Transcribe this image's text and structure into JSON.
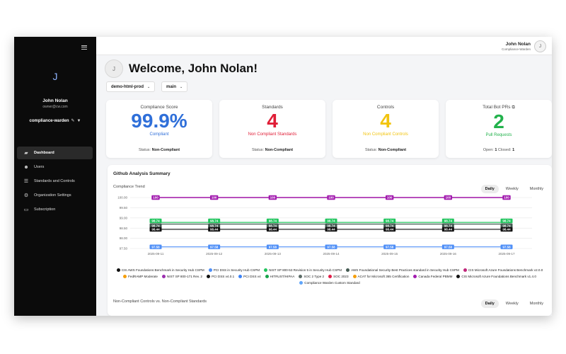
{
  "sidebar": {
    "avatar_initial": "J",
    "user_name": "John Nolan",
    "user_email": "owner@cw.com",
    "org_name": "compliance-warden",
    "nav": [
      {
        "label": "Dashboard",
        "icon": "dashboard-icon",
        "active": true
      },
      {
        "label": "Users",
        "icon": "users-icon",
        "active": false
      },
      {
        "label": "Standards and Controls",
        "icon": "list-icon",
        "active": false
      },
      {
        "label": "Organization Settings",
        "icon": "gear-icon",
        "active": false
      },
      {
        "label": "Subscription",
        "icon": "card-icon",
        "active": false
      }
    ]
  },
  "header": {
    "user_name": "John Nolan",
    "user_role": "Compliance-Warden",
    "avatar_initial": "J"
  },
  "welcome": {
    "avatar_initial": "J",
    "title": "Welcome, John Nolan!"
  },
  "selectors": {
    "repo": "demo-html-prod",
    "branch": "main"
  },
  "cards": [
    {
      "title": "Compliance Score",
      "value": "99.9%",
      "sub": "Compliant",
      "status_label": "Status:",
      "status_value": "Non-Compliant",
      "value_color": "#2f6fd9",
      "sub_color": "#2f6fd9"
    },
    {
      "title": "Standards",
      "value": "4",
      "sub": "Non Compliant Standards",
      "status_label": "Status:",
      "status_value": "Non-Compliant",
      "value_color": "#e01e37",
      "sub_color": "#e01e37"
    },
    {
      "title": "Controls",
      "value": "4",
      "sub": "Non Compliant Controls",
      "status_label": "Status:",
      "status_value": "Non-Compliant",
      "value_color": "#f2c40f",
      "sub_color": "#f2c40f"
    },
    {
      "title": "Total Bot PRs",
      "value": "2",
      "sub": "Pull Requests",
      "open_label": "Open:",
      "open_value": "1",
      "closed_label": "Closed:",
      "closed_value": "1",
      "value_color": "#22b24c",
      "sub_color": "#22b24c"
    }
  ],
  "panel": {
    "title": "Github Analysis Summary",
    "trend_title": "Compliance Trend",
    "nc_title": "Non-Compliant Controls vs. Non-Compliant Standards",
    "toggle": [
      "Daily",
      "Weekly",
      "Monthly"
    ]
  },
  "chart_data": {
    "type": "line",
    "x": [
      "2025-09-11",
      "2025-09-12",
      "2025-09-13",
      "2025-09-14",
      "2025-09-15",
      "2025-09-16",
      "2025-09-17"
    ],
    "yticks": [
      "100.00",
      "99.50",
      "99.00",
      "98.50",
      "98.00",
      "97.50"
    ],
    "ylim": [
      97.5,
      100
    ],
    "series": [
      {
        "name": "CIS AWS Foundations Benchmark in Security Hub CSPM",
        "color": "#111111",
        "values": [
          98.44,
          98.44,
          98.44,
          98.44,
          98.44,
          98.44,
          98.44
        ]
      },
      {
        "name": "PCI DSS in Security Hub CSPM",
        "color": "#4f8ff7",
        "values": [
          97.58,
          97.58,
          97.58,
          97.58,
          97.58,
          97.58,
          97.58
        ]
      },
      {
        "name": "NIST SP 800-53 Revision 5 in Security Hub CSPM",
        "color": "#22c55e",
        "values": [
          98.74,
          98.74,
          98.74,
          98.74,
          98.74,
          98.74,
          98.74
        ]
      },
      {
        "name": "AWS Foundational Security Best Practices standard in Security Hub CSPM",
        "color": "#445a52",
        "values": [
          98.74,
          98.74,
          98.74,
          98.74,
          98.74,
          98.74,
          98.74
        ]
      },
      {
        "name": "CIS Microsoft Azure Foundations Benchmark v2.0.0",
        "color": "#c0267a",
        "values": [
          100,
          100,
          100,
          100,
          100,
          100,
          100
        ]
      },
      {
        "name": "FedRAMP Moderate",
        "color": "#f59e0b",
        "values": [
          100,
          100,
          100,
          100,
          100,
          100,
          100
        ]
      },
      {
        "name": "NIST SP 800-171 Rev. 2",
        "color": "#9b2fae",
        "values": [
          100,
          100,
          100,
          100,
          100,
          100,
          100
        ]
      },
      {
        "name": "PCI DSS v4.0.1",
        "color": "#111111",
        "values": [
          100,
          100,
          100,
          100,
          100,
          100,
          100
        ]
      },
      {
        "name": "PCI DSS v4",
        "color": "#3b82f6",
        "values": [
          100,
          100,
          100,
          100,
          100,
          100,
          100
        ]
      },
      {
        "name": "HITRUST/HIPAA",
        "color": "#16a34a",
        "values": [
          100,
          100,
          100,
          100,
          100,
          100,
          100
        ]
      },
      {
        "name": "SOC 2 Type 2",
        "color": "#5b6b66",
        "values": [
          100,
          100,
          100,
          100,
          100,
          100,
          100
        ]
      },
      {
        "name": "SOC 2023",
        "color": "#e11d48",
        "values": [
          100,
          100,
          100,
          100,
          100,
          100,
          100
        ]
      },
      {
        "name": "ACAT for Microsoft 365 Certification",
        "color": "#f59e0b",
        "values": [
          100,
          100,
          100,
          100,
          100,
          100,
          100
        ]
      },
      {
        "name": "Canada Federal PBMM",
        "color": "#a21caf",
        "values": [
          100,
          100,
          100,
          100,
          100,
          100,
          100
        ]
      },
      {
        "name": "CIS Microsoft Azure Foundations Benchmark v1.4.0",
        "color": "#111111",
        "values": [
          100,
          100,
          100,
          100,
          100,
          100,
          100
        ]
      },
      {
        "name": "Compliance Warden Custom Standard",
        "color": "#60a5fa",
        "values": [
          100,
          100,
          100,
          100,
          100,
          100,
          100
        ]
      }
    ],
    "point_labels": [
      "100",
      "98.74",
      "98.74",
      "98.44",
      "97.58"
    ],
    "grid": true,
    "legend": "bottom"
  }
}
